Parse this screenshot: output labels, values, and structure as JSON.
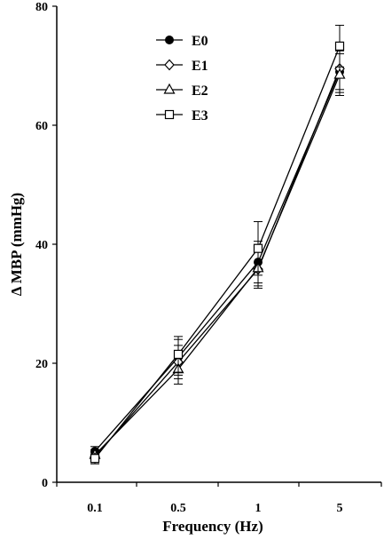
{
  "chart_data": {
    "type": "line",
    "title": "",
    "xlabel": "Frequency (Hz)",
    "ylabel": "Δ MBP (mmHg)",
    "categories": [
      "0.1",
      "0.5",
      "1",
      "5"
    ],
    "ylim": [
      0,
      80
    ],
    "yticks": [
      0,
      20,
      40,
      60,
      80
    ],
    "grid": false,
    "legend_position": "top-left",
    "series": [
      {
        "name": "E0",
        "marker": "filled-circle",
        "values": [
          5.2,
          21.0,
          37.0,
          69.0
        ],
        "errors": [
          0.8,
          3.0,
          3.5,
          3.5
        ]
      },
      {
        "name": "E1",
        "marker": "open-diamond",
        "values": [
          4.3,
          20.2,
          35.8,
          69.5
        ],
        "errors": [
          0.8,
          2.8,
          3.2,
          3.5
        ]
      },
      {
        "name": "E2",
        "marker": "open-triangle",
        "values": [
          4.6,
          19.0,
          36.0,
          68.5
        ],
        "errors": [
          0.9,
          2.5,
          3.0,
          3.5
        ]
      },
      {
        "name": "E3",
        "marker": "open-square",
        "values": [
          4.0,
          21.5,
          39.3,
          73.3
        ],
        "errors": [
          0.9,
          3.0,
          4.5,
          3.5
        ]
      }
    ]
  }
}
